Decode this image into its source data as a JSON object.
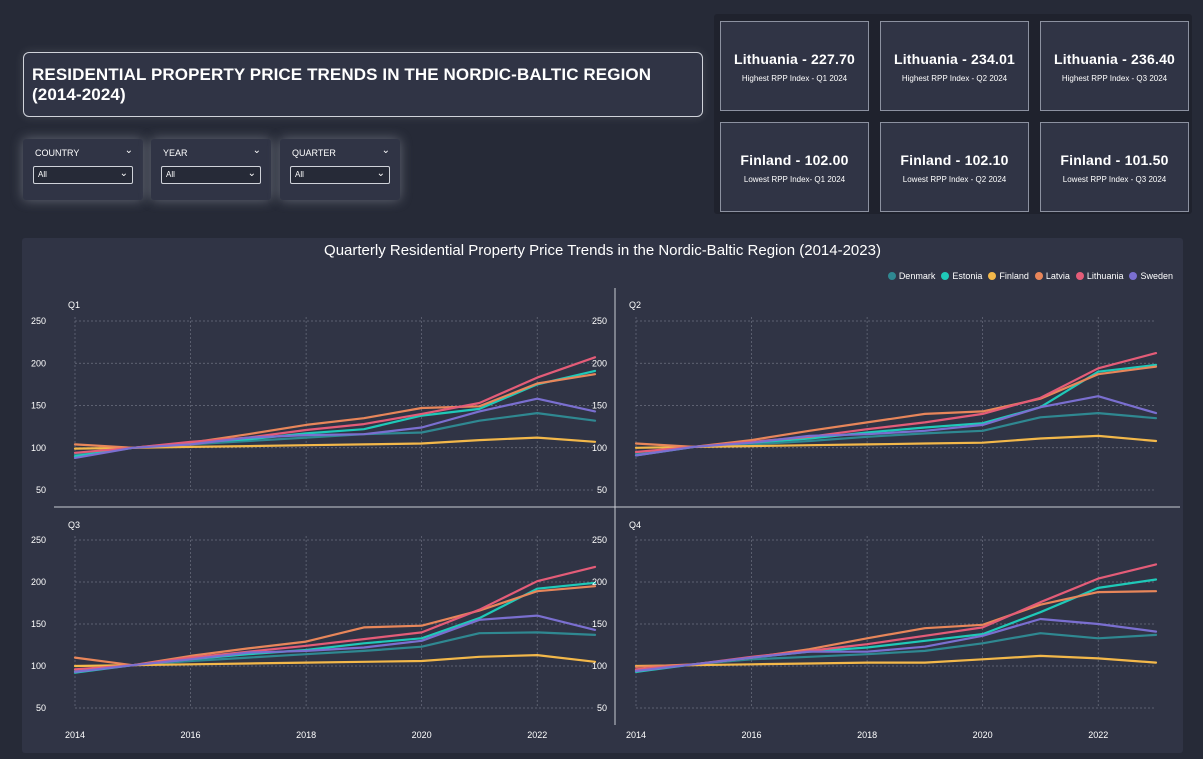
{
  "header": {
    "title": "RESIDENTIAL PROPERTY PRICE TRENDS IN THE NORDIC-BALTIC REGION (2014-2024)"
  },
  "filters": [
    {
      "label": "COUNTRY",
      "value": "All"
    },
    {
      "label": "YEAR",
      "value": "All"
    },
    {
      "label": "QUARTER",
      "value": "All"
    }
  ],
  "kpis": [
    {
      "value": "Lithuania - 227.70",
      "label": "Highest RPP Index - Q1 2024"
    },
    {
      "value": "Lithuania - 234.01",
      "label": "Highest RPP Index - Q2 2024"
    },
    {
      "value": "Lithuania - 236.40",
      "label": "Highest RPP Index - Q3 2024"
    },
    {
      "value": "Finland - 102.00",
      "label": "Lowest RPP Index- Q1 2024"
    },
    {
      "value": "Finland - 102.10",
      "label": "Lowest RPP Index - Q2 2024"
    },
    {
      "value": "Finland - 101.50",
      "label": "Lowest RPP Index - Q3 2024"
    }
  ],
  "icons": {
    "chevron": "chevron-down-icon"
  },
  "chart_data": {
    "type": "line",
    "title": "Quarterly Residential Property Price Trends in the Nordic-Baltic Region (2014-2023)",
    "legend_position": "top-right",
    "grid": true,
    "x": [
      2014,
      2015,
      2016,
      2017,
      2018,
      2019,
      2020,
      2021,
      2022,
      2023
    ],
    "x_ticks": [
      2014,
      2016,
      2018,
      2020,
      2022
    ],
    "ylim": [
      50,
      250
    ],
    "y_ticks": [
      50,
      100,
      150,
      200,
      250
    ],
    "colors": {
      "Denmark": "#2f8891",
      "Estonia": "#1fc9b8",
      "Finland": "#f3b84a",
      "Latvia": "#e8865a",
      "Lithuania": "#e45c78",
      "Sweden": "#7a6fd0"
    },
    "legend": [
      "Denmark",
      "Estonia",
      "Finland",
      "Latvia",
      "Lithuania",
      "Sweden"
    ],
    "panels": [
      {
        "name": "Q1",
        "series": [
          {
            "name": "Denmark",
            "values": [
              92,
              100,
              104,
              108,
              112,
              116,
              118,
              132,
              141,
              132
            ]
          },
          {
            "name": "Estonia",
            "values": [
              90,
              100,
              106,
              110,
              117,
              122,
              138,
              146,
              175,
              191
            ]
          },
          {
            "name": "Finland",
            "values": [
              99,
              100,
              101,
              102,
              103,
              104,
              105,
              109,
              112,
              107
            ]
          },
          {
            "name": "Latvia",
            "values": [
              104,
              100,
              106,
              116,
              127,
              135,
              147,
              149,
              176,
              187
            ]
          },
          {
            "name": "Lithuania",
            "values": [
              94,
              100,
              107,
              112,
              121,
              128,
              140,
              153,
              183,
              207
            ]
          },
          {
            "name": "Sweden",
            "values": [
              88,
              100,
              104,
              112,
              115,
              116,
              124,
              143,
              158,
              143
            ]
          }
        ]
      },
      {
        "name": "Q2",
        "series": [
          {
            "name": "Denmark",
            "values": [
              93,
              101,
              104,
              108,
              113,
              117,
              120,
              136,
              141,
              135
            ]
          },
          {
            "name": "Estonia",
            "values": [
              91,
              101,
              106,
              111,
              118,
              124,
              129,
              148,
              190,
              198
            ]
          },
          {
            "name": "Finland",
            "values": [
              100,
              101,
              102,
              103,
              104,
              105,
              106,
              111,
              114,
              108
            ]
          },
          {
            "name": "Latvia",
            "values": [
              105,
              101,
              109,
              120,
              130,
              140,
              143,
              158,
              187,
              196
            ]
          },
          {
            "name": "Lithuania",
            "values": [
              95,
              101,
              107,
              113,
              122,
              130,
              140,
              159,
              194,
              212
            ]
          },
          {
            "name": "Sweden",
            "values": [
              91,
              101,
              106,
              114,
              116,
              120,
              127,
              148,
              161,
              141
            ]
          }
        ]
      },
      {
        "name": "Q3",
        "series": [
          {
            "name": "Denmark",
            "values": [
              94,
              101,
              106,
              110,
              114,
              118,
              123,
              139,
              140,
              137
            ]
          },
          {
            "name": "Estonia",
            "values": [
              92,
              101,
              108,
              114,
              119,
              127,
              133,
              157,
              192,
              199
            ]
          },
          {
            "name": "Finland",
            "values": [
              100,
              101,
              102,
              103,
              104,
              105,
              106,
              111,
              113,
              105
            ]
          },
          {
            "name": "Latvia",
            "values": [
              110,
              101,
              112,
              121,
              129,
              146,
              148,
              166,
              189,
              195
            ]
          },
          {
            "name": "Lithuania",
            "values": [
              96,
              101,
              110,
              117,
              124,
              132,
              140,
              167,
              201,
              218
            ]
          },
          {
            "name": "Sweden",
            "values": [
              93,
              101,
              108,
              116,
              118,
              122,
              130,
              155,
              160,
              143
            ]
          }
        ]
      },
      {
        "name": "Q4",
        "series": [
          {
            "name": "Denmark",
            "values": [
              95,
              102,
              108,
              111,
              114,
              118,
              127,
              139,
              133,
              137
            ]
          },
          {
            "name": "Estonia",
            "values": [
              93,
              102,
              110,
              117,
              122,
              130,
              138,
              164,
              193,
              203
            ]
          },
          {
            "name": "Finland",
            "values": [
              100,
              101,
              102,
              103,
              104,
              104,
              108,
              112,
              109,
              104
            ]
          },
          {
            "name": "Latvia",
            "values": [
              99,
              102,
              110,
              120,
              133,
              145,
              149,
              173,
              188,
              189
            ]
          },
          {
            "name": "Lithuania",
            "values": [
              96,
              102,
              111,
              118,
              126,
              136,
              146,
              176,
              204,
              221
            ]
          },
          {
            "name": "Sweden",
            "values": [
              94,
              102,
              110,
              117,
              117,
              123,
              136,
              156,
              150,
              141
            ]
          }
        ]
      }
    ]
  }
}
